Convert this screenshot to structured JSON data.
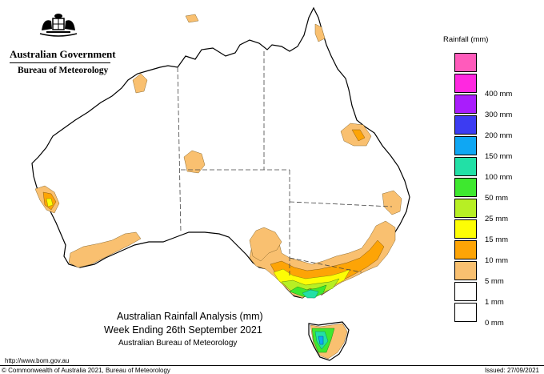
{
  "header": {
    "government": "Australian Government",
    "bureau": "Bureau of Meteorology"
  },
  "legend": {
    "title": "Rainfall (mm)",
    "items": [
      {
        "label": "",
        "color": "#ff5bbb"
      },
      {
        "label": "400 mm",
        "color": "#ff28e0"
      },
      {
        "label": "300 mm",
        "color": "#a91dfc"
      },
      {
        "label": "200 mm",
        "color": "#3c3cf2"
      },
      {
        "label": "150 mm",
        "color": "#0fa7f3"
      },
      {
        "label": "100 mm",
        "color": "#22e0a6"
      },
      {
        "label": "50 mm",
        "color": "#3ee82f"
      },
      {
        "label": "25 mm",
        "color": "#b7ef24"
      },
      {
        "label": "15 mm",
        "color": "#fdfd05"
      },
      {
        "label": "10 mm",
        "color": "#fda406"
      },
      {
        "label": "5 mm",
        "color": "#f9c070"
      },
      {
        "label": "1 mm",
        "color": "#ffffff"
      },
      {
        "label": "0 mm",
        "color": "#ffffff"
      }
    ]
  },
  "titles": {
    "line1": "Australian Rainfall Analysis (mm)",
    "line2": "Week Ending 26th September 2021",
    "line3": "Australian Bureau of Meteorology"
  },
  "footer": {
    "url": "http://www.bom.gov.au",
    "copyright": "© Commonwealth of Australia 2021, Bureau of Meteorology",
    "issued": "Issued: 27/09/2021"
  },
  "colors": {
    "coast": "#000000",
    "state_border": "#444444",
    "band_1": "#f9c070",
    "band_5": "#fda406",
    "band_10": "#fdfd05",
    "band_15": "#b7ef24",
    "band_25": "#3ee82f",
    "band_50": "#22e0a6",
    "band_100": "#0fa7f3"
  }
}
